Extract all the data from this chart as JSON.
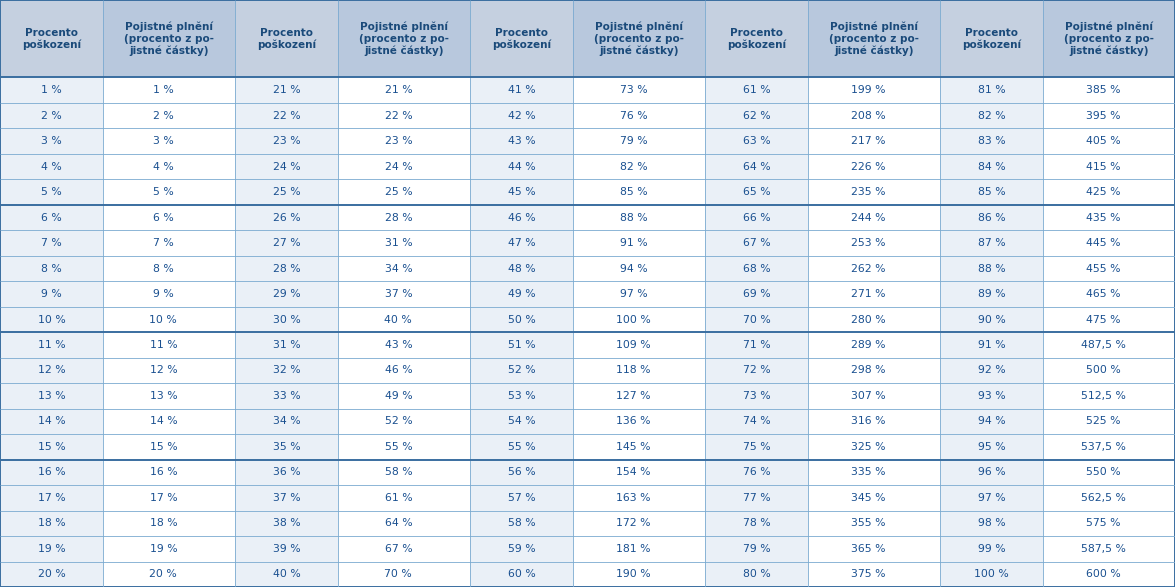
{
  "headers": [
    "Procento\npoškození",
    "Pojistné plnění\n(procento z po-\njistné částky)",
    "Procento\npoškození",
    "Pojistné plnění\n(procento z po-\njistné částky)",
    "Procento\npoškození",
    "Pojistné plnění\n(procento z po-\njistné částky)",
    "Procento\npoškození",
    "Pojistné plnění\n(procento z po-\njistné částky)",
    "Procento\npoškození",
    "Pojistné plnění\n(procento z po-\njistné částky)"
  ],
  "col1_pct": [
    "1 %",
    "2 %",
    "3 %",
    "4 %",
    "5 %",
    "6 %",
    "7 %",
    "8 %",
    "9 %",
    "10 %",
    "11 %",
    "12 %",
    "13 %",
    "14 %",
    "15 %",
    "16 %",
    "17 %",
    "18 %",
    "19 %",
    "20 %"
  ],
  "col2_pct": [
    "1 %",
    "2 %",
    "3 %",
    "4 %",
    "5 %",
    "6 %",
    "7 %",
    "8 %",
    "9 %",
    "10 %",
    "11 %",
    "12 %",
    "13 %",
    "14 %",
    "15 %",
    "16 %",
    "17 %",
    "18 %",
    "19 %",
    "20 %"
  ],
  "col3_pct": [
    "21 %",
    "22 %",
    "23 %",
    "24 %",
    "25 %",
    "26 %",
    "27 %",
    "28 %",
    "29 %",
    "30 %",
    "31 %",
    "32 %",
    "33 %",
    "34 %",
    "35 %",
    "36 %",
    "37 %",
    "38 %",
    "39 %",
    "40 %"
  ],
  "col4_pct": [
    "21 %",
    "22 %",
    "23 %",
    "24 %",
    "25 %",
    "28 %",
    "31 %",
    "34 %",
    "37 %",
    "40 %",
    "43 %",
    "46 %",
    "49 %",
    "52 %",
    "55 %",
    "58 %",
    "61 %",
    "64 %",
    "67 %",
    "70 %"
  ],
  "col5_pct": [
    "41 %",
    "42 %",
    "43 %",
    "44 %",
    "45 %",
    "46 %",
    "47 %",
    "48 %",
    "49 %",
    "50 %",
    "51 %",
    "52 %",
    "53 %",
    "54 %",
    "55 %",
    "56 %",
    "57 %",
    "58 %",
    "59 %",
    "60 %"
  ],
  "col6_pct": [
    "73 %",
    "76 %",
    "79 %",
    "82 %",
    "85 %",
    "88 %",
    "91 %",
    "94 %",
    "97 %",
    "100 %",
    "109 %",
    "118 %",
    "127 %",
    "136 %",
    "145 %",
    "154 %",
    "163 %",
    "172 %",
    "181 %",
    "190 %"
  ],
  "col7_pct": [
    "61 %",
    "62 %",
    "63 %",
    "64 %",
    "65 %",
    "66 %",
    "67 %",
    "68 %",
    "69 %",
    "70 %",
    "71 %",
    "72 %",
    "73 %",
    "74 %",
    "75 %",
    "76 %",
    "77 %",
    "78 %",
    "79 %",
    "80 %"
  ],
  "col8_pct": [
    "199 %",
    "208 %",
    "217 %",
    "226 %",
    "235 %",
    "244 %",
    "253 %",
    "262 %",
    "271 %",
    "280 %",
    "289 %",
    "298 %",
    "307 %",
    "316 %",
    "325 %",
    "335 %",
    "345 %",
    "355 %",
    "365 %",
    "375 %"
  ],
  "col9_pct": [
    "81 %",
    "82 %",
    "83 %",
    "84 %",
    "85 %",
    "86 %",
    "87 %",
    "88 %",
    "89 %",
    "90 %",
    "91 %",
    "92 %",
    "93 %",
    "94 %",
    "95 %",
    "96 %",
    "97 %",
    "98 %",
    "99 %",
    "100 %"
  ],
  "col10_pct": [
    "385 %",
    "395 %",
    "405 %",
    "415 %",
    "425 %",
    "435 %",
    "445 %",
    "455 %",
    "465 %",
    "475 %",
    "487,5 %",
    "500 %",
    "512,5 %",
    "525 %",
    "537,5 %",
    "550 %",
    "562,5 %",
    "575 %",
    "587,5 %",
    "600 %"
  ],
  "header_bg_procento": "#c5d0e0",
  "header_bg_pojistne": "#b8c8dd",
  "header_text_color": "#1a4a7a",
  "cell_text_color": "#1a5090",
  "row_bg_white": "#ffffff",
  "row_bg_light": "#dce6f0",
  "border_color_thick": "#3a6ea0",
  "border_color_thin": "#7aaad0",
  "fig_width": 11.75,
  "fig_height": 5.87,
  "dpi": 100
}
